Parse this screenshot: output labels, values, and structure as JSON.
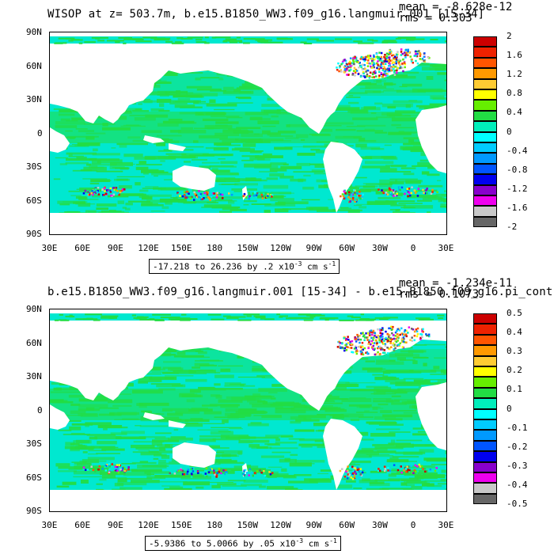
{
  "panels": [
    {
      "title": "WISOP at z= 503.7m, b.e15.B1850_WW3.f09_g16.langmuir.001 [15-34]",
      "mean": "mean = -8.628e-12",
      "rms": "rms = 0.303",
      "range_text": "-17.218 to 26.236 by .2",
      "range_units": "x10",
      "range_exp": "-3",
      "range_tail": "cm s",
      "range_tail_exp": "-1",
      "colorbar_labels": [
        "2",
        "1.6",
        "1.2",
        "0.8",
        "0.4",
        "0",
        "-0.4",
        "-0.8",
        "-1.2",
        "-1.6",
        "-2"
      ]
    },
    {
      "title": "b.e15.B1850_WW3.f09_g16.langmuir.001 [15-34] - b.e15.B1850.f09_g16.pi_cont",
      "mean": "mean = -1.234e-11",
      "rms": "rms = 0.1073",
      "range_text": "-5.9386 to 5.0066 by .05",
      "range_units": "x10",
      "range_exp": "-3",
      "range_tail": "cm s",
      "range_tail_exp": "-1",
      "colorbar_labels": [
        "0.5",
        "0.4",
        "0.3",
        "0.2",
        "0.1",
        "0",
        "-0.1",
        "-0.2",
        "-0.3",
        "-0.4",
        "-0.5"
      ]
    }
  ],
  "axes": {
    "lat_labels": [
      "90N",
      "60N",
      "30N",
      "0",
      "30S",
      "60S",
      "90S"
    ],
    "lon_labels": [
      "30E",
      "60E",
      "90E",
      "120E",
      "150E",
      "180",
      "150W",
      "120W",
      "90W",
      "60W",
      "30W",
      "0",
      "30E"
    ]
  },
  "colors": {
    "ocean_base": "#00e8d0",
    "ocean_green": "#22dd44",
    "land": "#ffffff",
    "colorbar": [
      "#cc0000",
      "#ee2200",
      "#ff5500",
      "#ff9900",
      "#ffcc33",
      "#ffff00",
      "#66ee00",
      "#22dd44",
      "#00eebb",
      "#00ffff",
      "#00ccff",
      "#0099ff",
      "#0055ff",
      "#0000ee",
      "#8800cc",
      "#ee00ee",
      "#c8c8c8",
      "#666666"
    ]
  }
}
